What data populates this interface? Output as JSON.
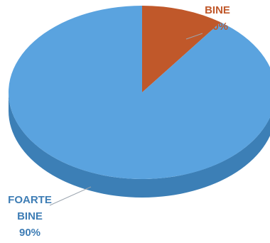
{
  "chart_data": {
    "type": "pie",
    "style": "3d",
    "title": "",
    "slices": [
      {
        "label": "BINE",
        "value": 10,
        "value_label": "10%",
        "color": "#C0582A",
        "side_color": "#8E3C18"
      },
      {
        "label": "FOARTE BINE",
        "label_lines": [
          "FOARTE",
          "BINE"
        ],
        "value": 90,
        "value_label": "90%",
        "color": "#5AA3DF",
        "side_color": "#3C7FB6"
      }
    ],
    "label_colors": {
      "BINE": "#C0582A",
      "FOARTE BINE": "#3E7DB5"
    }
  }
}
